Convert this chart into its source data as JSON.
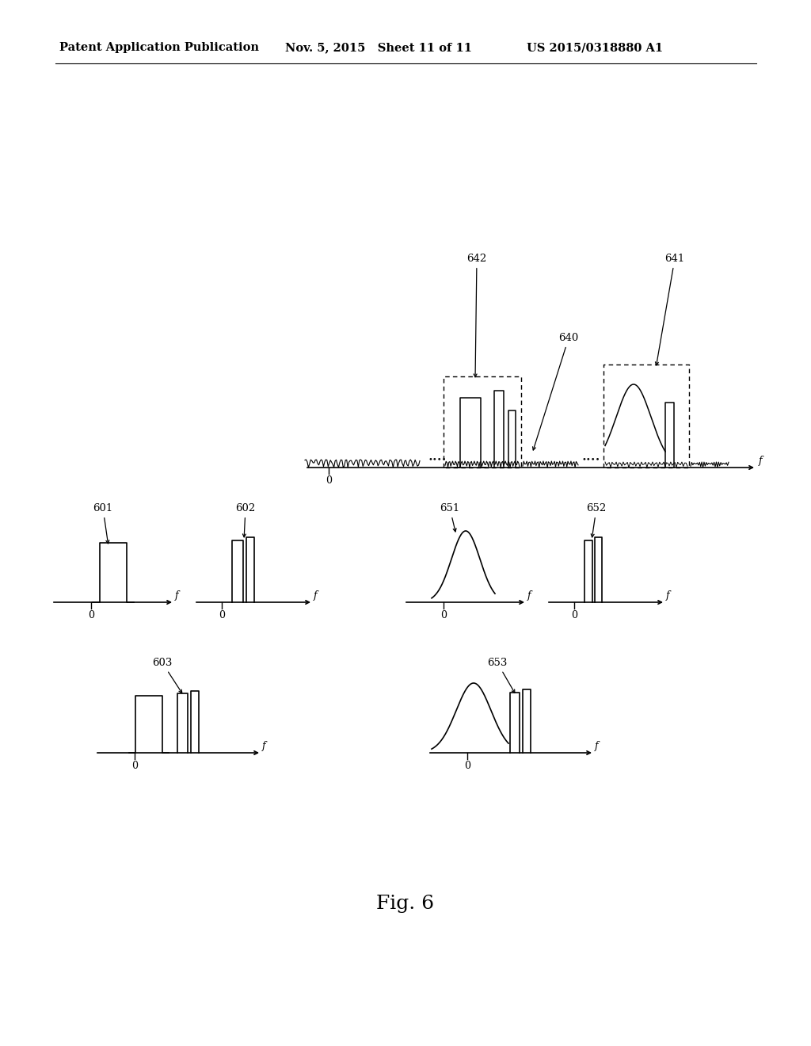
{
  "bg_color": "#ffffff",
  "header_left": "Patent Application Publication",
  "header_mid": "Nov. 5, 2015   Sheet 11 of 11",
  "header_right": "US 2015/0318880 A1",
  "fig_label": "Fig. 6"
}
